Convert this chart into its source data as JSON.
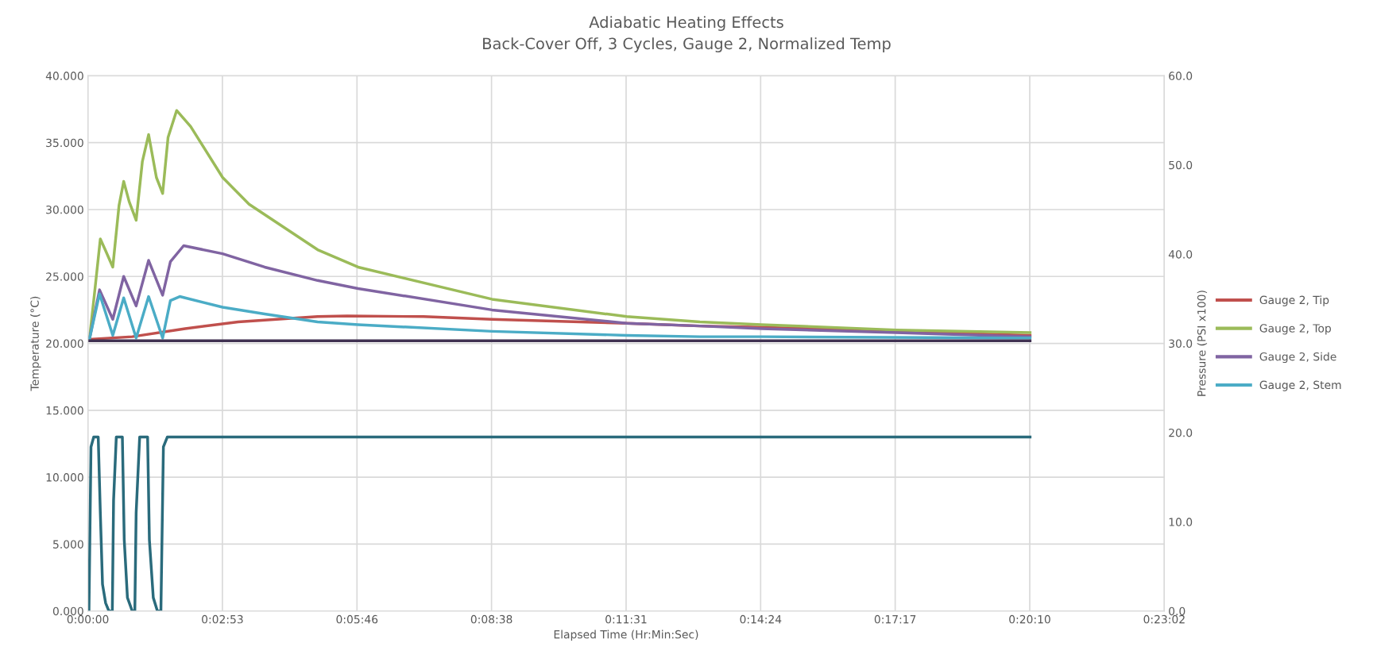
{
  "chart_data": {
    "type": "line",
    "title": "Adiabatic Heating Effects",
    "subtitle": "Back-Cover Off, 3 Cycles, Gauge 2, Normalized Temp",
    "xlabel": "Elapsed Time (Hr:Min:Sec)",
    "ylabel": "Temperature (°C)",
    "y2label": "Pressure (PSI x100)",
    "xlim": [
      0,
      1382.4
    ],
    "xticks": [
      {
        "value": 0,
        "label": "0:00:00"
      },
      {
        "value": 172.8,
        "label": "0:02:53"
      },
      {
        "value": 345.6,
        "label": "0:05:46"
      },
      {
        "value": 518.4,
        "label": "0:08:38"
      },
      {
        "value": 691.2,
        "label": "0:11:31"
      },
      {
        "value": 864,
        "label": "0:14:24"
      },
      {
        "value": 1036.8,
        "label": "0:17:17"
      },
      {
        "value": 1209.6,
        "label": "0:20:10"
      },
      {
        "value": 1382.4,
        "label": "0:23:02"
      }
    ],
    "ylim": [
      0,
      40
    ],
    "yticks": [
      {
        "value": 0,
        "label": "0.000"
      },
      {
        "value": 5,
        "label": "5.000"
      },
      {
        "value": 10,
        "label": "10.000"
      },
      {
        "value": 15,
        "label": "15.000"
      },
      {
        "value": 20,
        "label": "20.000"
      },
      {
        "value": 25,
        "label": "25.000"
      },
      {
        "value": 30,
        "label": "30.000"
      },
      {
        "value": 35,
        "label": "35.000"
      },
      {
        "value": 40,
        "label": "40.000"
      }
    ],
    "y2lim": [
      0,
      60
    ],
    "y2ticks": [
      {
        "value": 0,
        "label": "0.0"
      },
      {
        "value": 10,
        "label": "10.0"
      },
      {
        "value": 20,
        "label": "20.0"
      },
      {
        "value": 30,
        "label": "30.0"
      },
      {
        "value": 40,
        "label": "40.0"
      },
      {
        "value": 50,
        "label": "50.0"
      },
      {
        "value": 60,
        "label": "60.0"
      }
    ],
    "grid": true,
    "legend": "right",
    "marker": "none",
    "line_style": "solid",
    "series": [
      {
        "name": "Gauge 2, Tip",
        "color": "#c0504d",
        "x": [
          2,
          57,
          125,
          193,
          295,
          333,
          431,
          519,
          692,
          786,
          865,
          1038,
          1210
        ],
        "values": [
          20.3,
          20.5,
          21.1,
          21.6,
          22.0,
          22.05,
          22.0,
          21.8,
          21.5,
          21.3,
          21.2,
          20.9,
          20.6
        ]
      },
      {
        "name": "Gauge 2, Top",
        "color": "#9bbb59",
        "x": [
          2,
          9,
          16,
          23,
          32,
          40,
          46,
          53,
          62,
          70,
          78,
          88,
          96,
          103,
          114,
          132,
          173,
          207,
          295,
          347,
          519,
          692,
          786,
          865,
          1038,
          1210
        ],
        "values": [
          20.3,
          24.0,
          27.8,
          26.9,
          25.7,
          30.3,
          32.1,
          30.6,
          29.2,
          33.6,
          35.6,
          32.4,
          31.2,
          35.4,
          37.4,
          36.2,
          32.4,
          30.4,
          27.0,
          25.7,
          23.3,
          22.0,
          21.6,
          21.4,
          21.0,
          20.8
        ]
      },
      {
        "name": "Gauge 2, Side",
        "color": "#8064a2",
        "x": [
          2,
          15,
          32,
          46,
          62,
          78,
          96,
          106,
          123,
          173,
          227,
          295,
          347,
          519,
          692,
          786,
          865,
          1038,
          1210
        ],
        "values": [
          20.3,
          24.0,
          21.8,
          25.0,
          22.8,
          26.2,
          23.6,
          26.1,
          27.3,
          26.7,
          25.7,
          24.7,
          24.1,
          22.5,
          21.5,
          21.3,
          21.1,
          20.8,
          20.5
        ]
      },
      {
        "name": "Gauge 2, Stem",
        "color": "#4bacc6",
        "x": [
          2,
          15,
          32,
          46,
          62,
          78,
          96,
          106,
          118,
          173,
          227,
          295,
          347,
          519,
          692,
          786,
          865,
          1210
        ],
        "values": [
          20.3,
          23.7,
          20.6,
          23.4,
          20.4,
          23.5,
          20.4,
          23.2,
          23.5,
          22.7,
          22.2,
          21.6,
          21.4,
          20.9,
          20.6,
          20.5,
          20.5,
          20.4
        ]
      },
      {
        "color": "#403152",
        "x": [
          0,
          300,
          600,
          900,
          1210
        ],
        "values": [
          20.2,
          20.2,
          20.2,
          20.2,
          20.2
        ]
      },
      {
        "color": "#2a6b7c",
        "axis": "y2",
        "x": [
          1.4,
          4,
          7.5,
          13.3,
          16,
          18.8,
          22.8,
          27,
          31.4,
          33,
          36.5,
          44.3,
          46.7,
          50.8,
          57,
          60.3,
          62,
          66.5,
          76.7,
          79,
          84,
          89.3,
          93.8,
          97,
          102,
          1210
        ],
        "values": [
          0,
          18.4,
          19.5,
          19.5,
          11.0,
          3.0,
          0.9,
          0,
          0,
          12.4,
          19.5,
          19.5,
          8.0,
          1.5,
          0,
          0,
          11.0,
          19.5,
          19.5,
          8.0,
          1.5,
          0,
          0,
          18.4,
          19.5,
          19.5
        ]
      }
    ]
  }
}
